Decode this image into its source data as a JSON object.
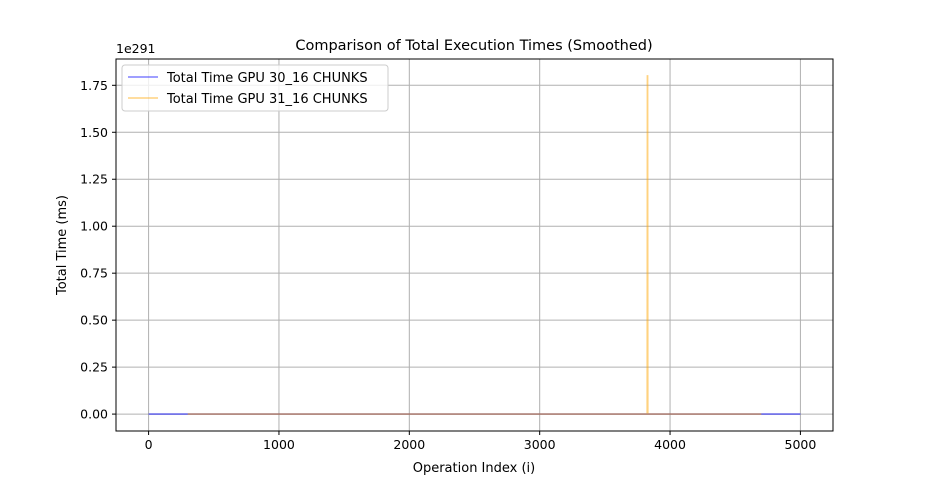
{
  "chart_data": {
    "type": "line",
    "title": "Comparison of Total Execution Times (Smoothed)",
    "xlabel": "Operation Index (i)",
    "ylabel": "Total Time (ms)",
    "y_offset_label": "1e291",
    "xlim": [
      -250,
      5250
    ],
    "ylim": [
      -0.09,
      1.89
    ],
    "x_ticks": [
      0,
      1000,
      2000,
      3000,
      4000,
      5000
    ],
    "x_tick_labels": [
      "0",
      "1000",
      "2000",
      "3000",
      "4000",
      "5000"
    ],
    "y_ticks": [
      0.0,
      0.25,
      0.5,
      0.75,
      1.0,
      1.25,
      1.5,
      1.75
    ],
    "y_tick_labels": [
      "0.00",
      "0.25",
      "0.50",
      "0.75",
      "1.00",
      "1.25",
      "1.50",
      "1.75"
    ],
    "grid": true,
    "legend_position": "top-left",
    "series": [
      {
        "name": "Total Time GPU 30_16 CHUNKS",
        "color": "#0000ff",
        "opacity": 0.5,
        "x": [
          0,
          5000
        ],
        "y": [
          0,
          0
        ]
      },
      {
        "name": "Total Time GPU 31_16 CHUNKS",
        "color": "#ffa500",
        "opacity": 0.5,
        "x": [
          300,
          3825,
          3826,
          3827,
          3828,
          3829,
          4700
        ],
        "y": [
          0,
          0,
          1.8,
          1.8,
          1.8,
          0,
          0
        ]
      }
    ]
  }
}
